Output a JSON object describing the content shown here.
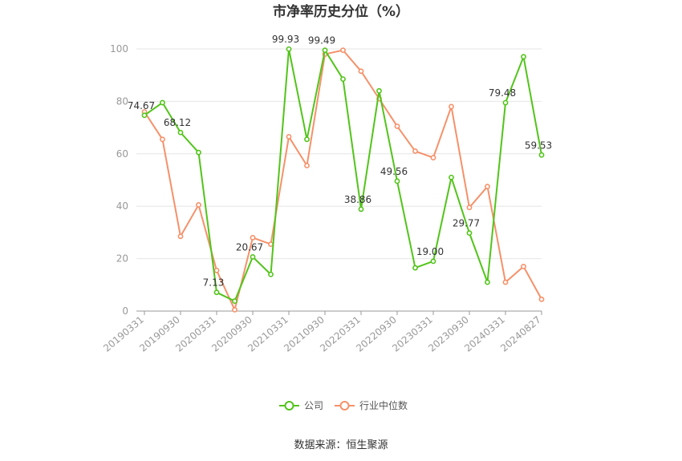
{
  "chart_data": {
    "type": "line",
    "title": "市净率历史分位（%）",
    "xlabel": "",
    "ylabel": "",
    "ylim": [
      0,
      100
    ],
    "yticks": [
      0,
      20,
      40,
      60,
      80,
      100
    ],
    "x": [
      "20190331",
      "",
      "20190930",
      "",
      "20200331",
      "",
      "20200930",
      "",
      "20210331",
      "",
      "20210930",
      "",
      "20220331",
      "",
      "20220930",
      "",
      "20230331",
      "",
      "20230930",
      "",
      "20240331",
      "",
      "20240827"
    ],
    "series": [
      {
        "name": "公司",
        "color": "#52c41a",
        "values": [
          74.67,
          79.5,
          68.12,
          60.5,
          7.13,
          3.8,
          20.67,
          14.0,
          99.93,
          65.5,
          99.49,
          88.5,
          38.86,
          84.0,
          49.56,
          16.5,
          19.0,
          51.0,
          29.77,
          11.0,
          79.48,
          97.0,
          59.53
        ],
        "labels": [
          "74.67",
          null,
          "68.12",
          null,
          "7.13",
          null,
          "20.67",
          null,
          "99.93",
          null,
          "99.49",
          null,
          "38.86",
          null,
          "49.56",
          null,
          "19.00",
          null,
          "29.77",
          null,
          "79.48",
          null,
          "59.53"
        ]
      },
      {
        "name": "行业中位数",
        "color": "#f5916a",
        "values": [
          76.0,
          65.5,
          28.5,
          40.5,
          15.5,
          0.5,
          28.0,
          25.5,
          66.5,
          55.5,
          98.0,
          99.5,
          91.5,
          81.0,
          70.5,
          61.0,
          58.5,
          78.0,
          39.5,
          47.5,
          11.0,
          17.0,
          4.5
        ]
      }
    ],
    "legend_position": "bottom-center",
    "grid": true
  },
  "source_text": "数据来源：恒生聚源"
}
